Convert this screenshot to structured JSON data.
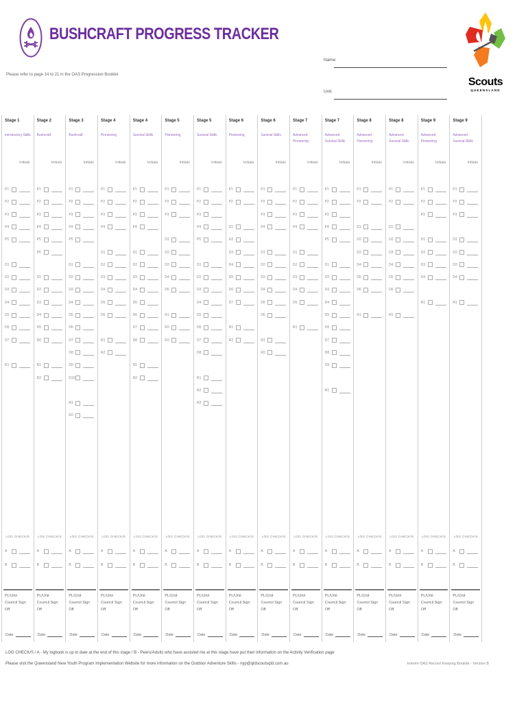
{
  "colors": {
    "brand_purple": "#6b2d9e",
    "skill_purple": "#9b6fc3",
    "logo_red": "#e02b20",
    "logo_orange": "#f47b20",
    "logo_yellow": "#ffc20e",
    "logo_green": "#72bf44"
  },
  "header": {
    "title": "BUSHCRAFT PROGRESS TRACKER",
    "subtitle": "Please refer to page 14 to 21 in the OAS Progression Booklet",
    "name_label": "Name",
    "unit_label": "Unit",
    "brand": {
      "name": "Scouts",
      "region": "QUEENSLAND"
    }
  },
  "table": {
    "initials_label": "Initials",
    "log_checks_label": "LOG CHECK/S",
    "log_check_rows": [
      "A",
      "B"
    ],
    "signoff_label": "PL/Unit Council Sign Off",
    "date_label": "Date",
    "columns": [
      {
        "stage": "Stage 1",
        "skill": "Introductory Skills",
        "plan": [
          "P1",
          "P2",
          "P3",
          "P4",
          "P5"
        ],
        "do": [
          "D1",
          "D2",
          "D3",
          "D4",
          "D5",
          "D6",
          "D7"
        ],
        "review": [
          "R1"
        ]
      },
      {
        "stage": "Stage 2",
        "skill": "Bushcraft",
        "plan": [
          "P1",
          "P2",
          "P3",
          "P4",
          "P5",
          "P6"
        ],
        "do": [
          "D1",
          "D2",
          "D3",
          "D4",
          "D5",
          "D6"
        ],
        "review": [
          "R1",
          "R2"
        ]
      },
      {
        "stage": "Stage 3",
        "skill": "Bushcraft",
        "plan": [
          "P1",
          "P2",
          "P3",
          "P4",
          "P5"
        ],
        "do": [
          "D1",
          "D2",
          "D3",
          "D4",
          "D5",
          "D6",
          "D7",
          "D8",
          "D9",
          "D10"
        ],
        "review": [
          "R1",
          "R2"
        ]
      },
      {
        "stage": "Stage 4",
        "skill": "Pioneering",
        "plan": [
          "P1",
          "P2",
          "P3",
          "P4"
        ],
        "do": [
          "D1",
          "D2",
          "D3",
          "D4",
          "D5",
          "D6"
        ],
        "review": [
          "R1",
          "R2"
        ]
      },
      {
        "stage": "Stage 4",
        "skill": "Survival Skills",
        "plan": [
          "P1",
          "P2",
          "P3",
          "P4"
        ],
        "do": [
          "D1",
          "D2",
          "D3",
          "D4",
          "D5",
          "D6",
          "D7",
          "D8"
        ],
        "review": [
          "R1",
          "R2"
        ]
      },
      {
        "stage": "Stage 5",
        "skill": "Pioneering",
        "plan": [
          "P1",
          "P2",
          "P3"
        ],
        "do": [
          "D1",
          "D2",
          "D3",
          "D4",
          "D5"
        ],
        "review": [
          "R1",
          "R2",
          "R3"
        ]
      },
      {
        "stage": "Stage 5",
        "skill": "Survival Skills",
        "plan": [
          "P1",
          "P2",
          "P3",
          "P4",
          "P5"
        ],
        "do": [
          "D1",
          "D2",
          "D3",
          "D4",
          "D5",
          "D6",
          "D7",
          "D8"
        ],
        "review": [
          "R1",
          "R2",
          "R3"
        ]
      },
      {
        "stage": "Stage 6",
        "skill": "Pioneering",
        "plan": [
          "P1",
          "P2"
        ],
        "do": [
          "D1",
          "D2",
          "D3",
          "D4",
          "D5",
          "D6",
          "D7"
        ],
        "review": [
          "R1",
          "R2"
        ]
      },
      {
        "stage": "Stage 6",
        "skill": "Survival Skills",
        "plan": [
          "P1",
          "P2",
          "P3",
          "P4"
        ],
        "do": [
          "D1",
          "D2",
          "D3",
          "D4",
          "D5",
          "D6"
        ],
        "review": [
          "R1",
          "R2"
        ]
      },
      {
        "stage": "Stage 7",
        "skill": "Advanced Pioneering",
        "plan": [
          "P1",
          "P2",
          "P3",
          "P4"
        ],
        "do": [
          "D1",
          "D2",
          "D3",
          "D4",
          "D5"
        ],
        "review": [
          "R1"
        ]
      },
      {
        "stage": "Stage 7",
        "skill": "Advanced Survival Skills",
        "plan": [
          "P1",
          "P2",
          "P3",
          "P4",
          "P5"
        ],
        "do": [
          "D1",
          "D2",
          "D3",
          "D4",
          "D5",
          "D6",
          "D7",
          "D8",
          "D9"
        ],
        "review": [
          "R1"
        ]
      },
      {
        "stage": "Stage 8",
        "skill": "Advanced Pioneering",
        "plan": [
          "P1",
          "P2"
        ],
        "do": [
          "D1",
          "D2",
          "D3",
          "D4",
          "D5",
          "D6"
        ],
        "review": [
          "R1"
        ]
      },
      {
        "stage": "Stage 8",
        "skill": "Advanced Survival Skills",
        "plan": [
          "P1",
          "P2"
        ],
        "do": [
          "D1",
          "D2",
          "D3",
          "D4",
          "D5",
          "D6"
        ],
        "review": [
          "R1"
        ]
      },
      {
        "stage": "Stage 9",
        "skill": "Advanced Pioneering",
        "plan": [
          "P1",
          "P2",
          "P3"
        ],
        "do": [
          "D1",
          "D2",
          "D3",
          "D4"
        ],
        "review": [
          "R1"
        ]
      },
      {
        "stage": "Stage 9",
        "skill": "Advanced Survival Skills",
        "plan": [
          "P1",
          "P2",
          "P3"
        ],
        "do": [
          "D1",
          "D2",
          "D3",
          "D4"
        ],
        "review": [
          "R1"
        ]
      }
    ]
  },
  "footer": {
    "note": "LOG CHECK/S / A - My logbook is up to date at the end of this stage / B - Peers/Adults who have assisted me at this stage have put their information on the Activity Verification page",
    "info": "Please visit the Queensland New Youth Program Implementation Website for more information on the Outdoor Adventure Skills - nyp@qldscoutsqld.com.au",
    "version": "Interim OAS Record Keeping Booklet - Version B"
  }
}
